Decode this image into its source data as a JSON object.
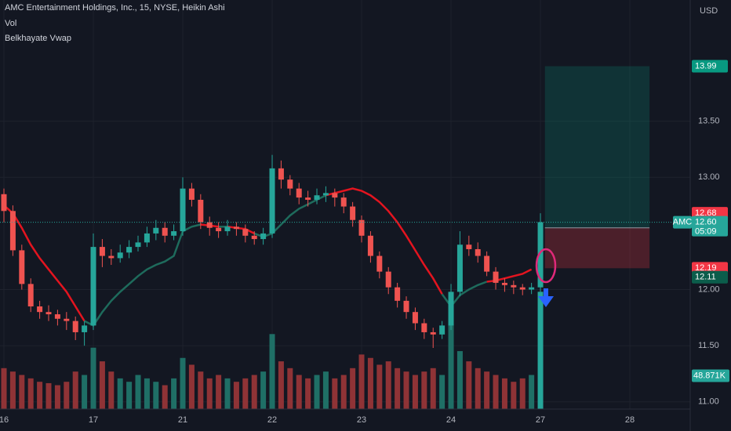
{
  "chart_data": {
    "type": "candlestick",
    "title": "AMC Entertainment Holdings, Inc., 15, NYSE, Heikin Ashi",
    "indicators": [
      "Vol",
      "Belkhayate Vwap"
    ],
    "currency": "USD",
    "x": [
      0,
      1,
      2,
      3,
      4,
      5,
      6,
      7,
      8,
      9,
      10,
      11,
      12,
      13,
      14,
      15,
      16,
      17,
      18,
      19,
      20,
      21,
      22,
      23,
      24,
      25,
      26,
      27,
      28,
      29,
      30,
      31,
      32,
      33,
      34,
      35,
      36,
      37,
      38,
      39,
      40,
      41,
      42,
      43,
      44,
      45,
      46,
      47,
      48,
      49,
      50,
      51,
      52,
      53,
      54,
      55,
      56,
      57,
      58,
      59,
      60
    ],
    "open": [
      12.85,
      12.7,
      12.35,
      12.05,
      11.85,
      11.8,
      11.78,
      11.74,
      11.72,
      11.62,
      11.68,
      12.38,
      12.3,
      12.28,
      12.33,
      12.38,
      12.42,
      12.5,
      12.55,
      12.48,
      12.52,
      12.9,
      12.8,
      12.6,
      12.55,
      12.52,
      12.56,
      12.54,
      12.48,
      12.45,
      12.5,
      13.08,
      12.98,
      12.9,
      12.82,
      12.8,
      12.84,
      12.86,
      12.82,
      12.74,
      12.62,
      12.48,
      12.3,
      12.16,
      12.02,
      11.9,
      11.8,
      11.7,
      11.62,
      11.6,
      11.68,
      11.98,
      12.4,
      12.36,
      12.3,
      12.16,
      12.06,
      12.04,
      12.02,
      12.0,
      12.02
    ],
    "high": [
      12.9,
      12.75,
      12.4,
      12.1,
      11.9,
      11.86,
      11.82,
      11.8,
      11.76,
      11.72,
      12.5,
      12.45,
      12.36,
      12.4,
      12.44,
      12.48,
      12.56,
      12.62,
      12.6,
      12.58,
      13.0,
      12.95,
      12.85,
      12.65,
      12.6,
      12.62,
      12.6,
      12.58,
      12.52,
      12.55,
      13.2,
      13.15,
      13.02,
      12.95,
      12.88,
      12.9,
      12.92,
      12.9,
      12.86,
      12.78,
      12.66,
      12.52,
      12.34,
      12.2,
      12.06,
      11.94,
      11.84,
      11.74,
      11.66,
      11.72,
      12.05,
      12.52,
      12.48,
      12.42,
      12.34,
      12.2,
      12.1,
      12.08,
      12.05,
      12.06,
      12.68
    ],
    "low": [
      12.6,
      12.3,
      12.0,
      11.8,
      11.74,
      11.72,
      11.68,
      11.64,
      11.55,
      11.5,
      11.64,
      12.2,
      12.22,
      12.24,
      12.28,
      12.34,
      12.38,
      12.44,
      12.42,
      12.44,
      12.48,
      12.74,
      12.54,
      12.48,
      12.46,
      12.48,
      12.48,
      12.42,
      12.4,
      12.4,
      12.46,
      12.9,
      12.84,
      12.76,
      12.74,
      12.76,
      12.78,
      12.74,
      12.68,
      12.56,
      12.42,
      12.24,
      12.1,
      11.96,
      11.84,
      11.74,
      11.64,
      11.56,
      11.48,
      11.56,
      11.64,
      11.94,
      12.3,
      12.24,
      12.12,
      12.0,
      11.98,
      11.96,
      11.95,
      11.96,
      11.98
    ],
    "close": [
      12.7,
      12.35,
      12.05,
      11.85,
      11.8,
      11.78,
      11.74,
      11.72,
      11.62,
      11.68,
      12.38,
      12.3,
      12.28,
      12.33,
      12.38,
      12.42,
      12.5,
      12.55,
      12.48,
      12.52,
      12.9,
      12.8,
      12.6,
      12.55,
      12.52,
      12.56,
      12.54,
      12.48,
      12.45,
      12.5,
      13.08,
      12.98,
      12.9,
      12.82,
      12.8,
      12.84,
      12.86,
      12.82,
      12.74,
      12.62,
      12.48,
      12.3,
      12.16,
      12.02,
      11.9,
      11.8,
      11.7,
      11.62,
      11.6,
      11.68,
      11.98,
      12.4,
      12.36,
      12.3,
      12.16,
      12.06,
      12.04,
      12.02,
      12.0,
      12.02,
      12.6
    ],
    "volume": [
      60000,
      55000,
      50000,
      45000,
      40000,
      38000,
      35000,
      40000,
      55000,
      50000,
      90000,
      70000,
      55000,
      45000,
      40000,
      50000,
      45000,
      40000,
      35000,
      45000,
      75000,
      65000,
      55000,
      45000,
      50000,
      45000,
      40000,
      45000,
      50000,
      55000,
      110000,
      70000,
      60000,
      50000,
      45000,
      50000,
      55000,
      45000,
      50000,
      60000,
      80000,
      75000,
      65000,
      70000,
      60000,
      55000,
      50000,
      55000,
      60000,
      50000,
      125000,
      85000,
      70000,
      60000,
      55000,
      50000,
      45000,
      40000,
      45000,
      50000,
      172000
    ],
    "vwap": [
      12.75,
      12.68,
      12.55,
      12.4,
      12.28,
      12.18,
      12.08,
      11.98,
      11.85,
      11.72,
      11.68,
      11.8,
      11.9,
      11.98,
      12.05,
      12.12,
      12.18,
      12.22,
      12.25,
      12.3,
      12.52,
      12.56,
      12.58,
      12.57,
      12.56,
      12.56,
      12.55,
      12.54,
      12.5,
      12.47,
      12.5,
      12.58,
      12.66,
      12.72,
      12.76,
      12.8,
      12.84,
      12.86,
      12.88,
      12.9,
      12.88,
      12.84,
      12.78,
      12.7,
      12.6,
      12.48,
      12.35,
      12.22,
      12.1,
      11.96,
      11.85,
      11.95,
      12.0,
      12.04,
      12.07,
      12.08,
      12.1,
      12.12,
      12.14,
      12.18,
      null
    ],
    "colors": {
      "up": "#26a69a",
      "down": "#ef5350",
      "vol_up": "#1f6f66",
      "vol_down": "#8f3336",
      "vwap_above": "#1e6b5c",
      "vwap_below": "#e3141f"
    },
    "xlim": [
      -0.4386,
      76.75
    ],
    "xticks": [
      {
        "value": 0,
        "label": "16"
      },
      {
        "value": 10,
        "label": "17"
      },
      {
        "value": 20,
        "label": "21"
      },
      {
        "value": 30,
        "label": "22"
      },
      {
        "value": 40,
        "label": "23"
      },
      {
        "value": 50,
        "label": "24"
      },
      {
        "value": 60,
        "label": "27"
      },
      {
        "value": 70,
        "label": "28"
      }
    ],
    "ylim": [
      10.74,
      14.58
    ],
    "yticks": [
      {
        "value": 11,
        "label": "11.00"
      },
      {
        "value": 11.5,
        "label": "11.50"
      },
      {
        "value": 12,
        "label": "12.00"
      },
      {
        "value": 13,
        "label": "13.00"
      },
      {
        "value": 13.5,
        "label": "13.50"
      }
    ],
    "volume_lim": [
      0,
      600000
    ],
    "grid": true,
    "position": {
      "start": 60.5,
      "end": 72.2,
      "target": 13.99,
      "entry": 12.55,
      "stop": 12.19,
      "target_color": "#089981",
      "stop_color": "#f23645",
      "entry_color": "#787b86"
    },
    "price_labels": [
      {
        "value": 12.68,
        "color": "#f23645"
      },
      {
        "value": 12.6,
        "label": "12.60",
        "tag": "AMC",
        "countdown": "05:09",
        "color": "#26a69a"
      },
      {
        "value": 12.11,
        "color": "#0b5d4b"
      }
    ],
    "volume_label": {
      "value": 48871,
      "label": "48.871K",
      "color": "#26a69a"
    }
  }
}
